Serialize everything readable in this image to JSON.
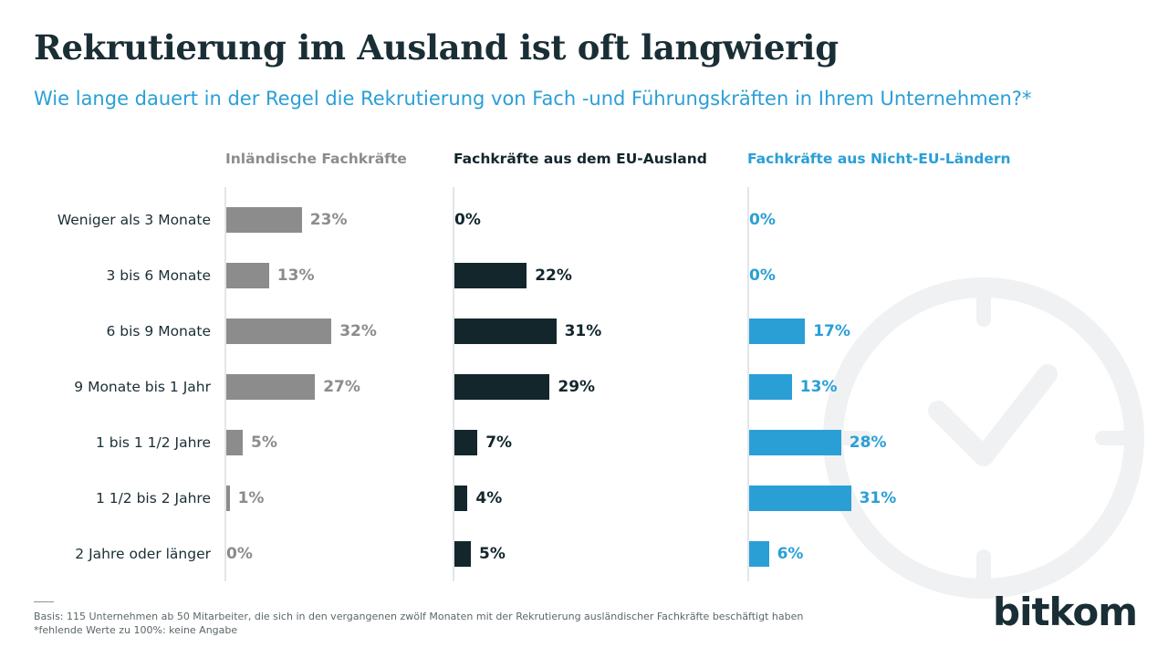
{
  "title": "Rekrutierung im Ausland ist oft langwierig",
  "subtitle": "Wie lange dauert in der Regel die Rekrutierung von Fach -und Führungskräften in Ihrem Unternehmen?*",
  "footnotes": [
    "Basis: 115 Unternehmen ab 50 Mitarbeiter, die sich in den vergangenen zwölf Monaten mit der Rekrutierung ausländischer Fachkräfte beschäftigt haben",
    "*fehlende Werte zu 100%: keine Angabe"
  ],
  "logo": {
    "part1": "bit",
    "part2": "kom"
  },
  "colors": {
    "grey": "#8c8c8c",
    "dark": "#13262c",
    "blue": "#2a9fd6",
    "title": "#1a2e35"
  },
  "chart_data": {
    "type": "bar",
    "orientation": "horizontal",
    "categories": [
      "Weniger als 3 Monate",
      "3 bis 6 Monate",
      "6 bis 9 Monate",
      "9 Monate bis 1 Jahr",
      "1 bis 1 1/2 Jahre",
      "1 1/2 bis 2 Jahre",
      "2 Jahre oder länger"
    ],
    "unit": "%",
    "series": [
      {
        "name": "Inländische Fachkräfte",
        "color": "#8c8c8c",
        "values": [
          23,
          13,
          32,
          27,
          5,
          1,
          0
        ]
      },
      {
        "name": "Fachkräfte aus dem EU-Ausland",
        "color": "#13262c",
        "values": [
          0,
          22,
          31,
          29,
          7,
          4,
          5
        ]
      },
      {
        "name": "Fachkräfte aus Nicht-EU-Ländern",
        "color": "#2a9fd6",
        "values": [
          0,
          0,
          17,
          13,
          28,
          31,
          6
        ]
      }
    ]
  }
}
